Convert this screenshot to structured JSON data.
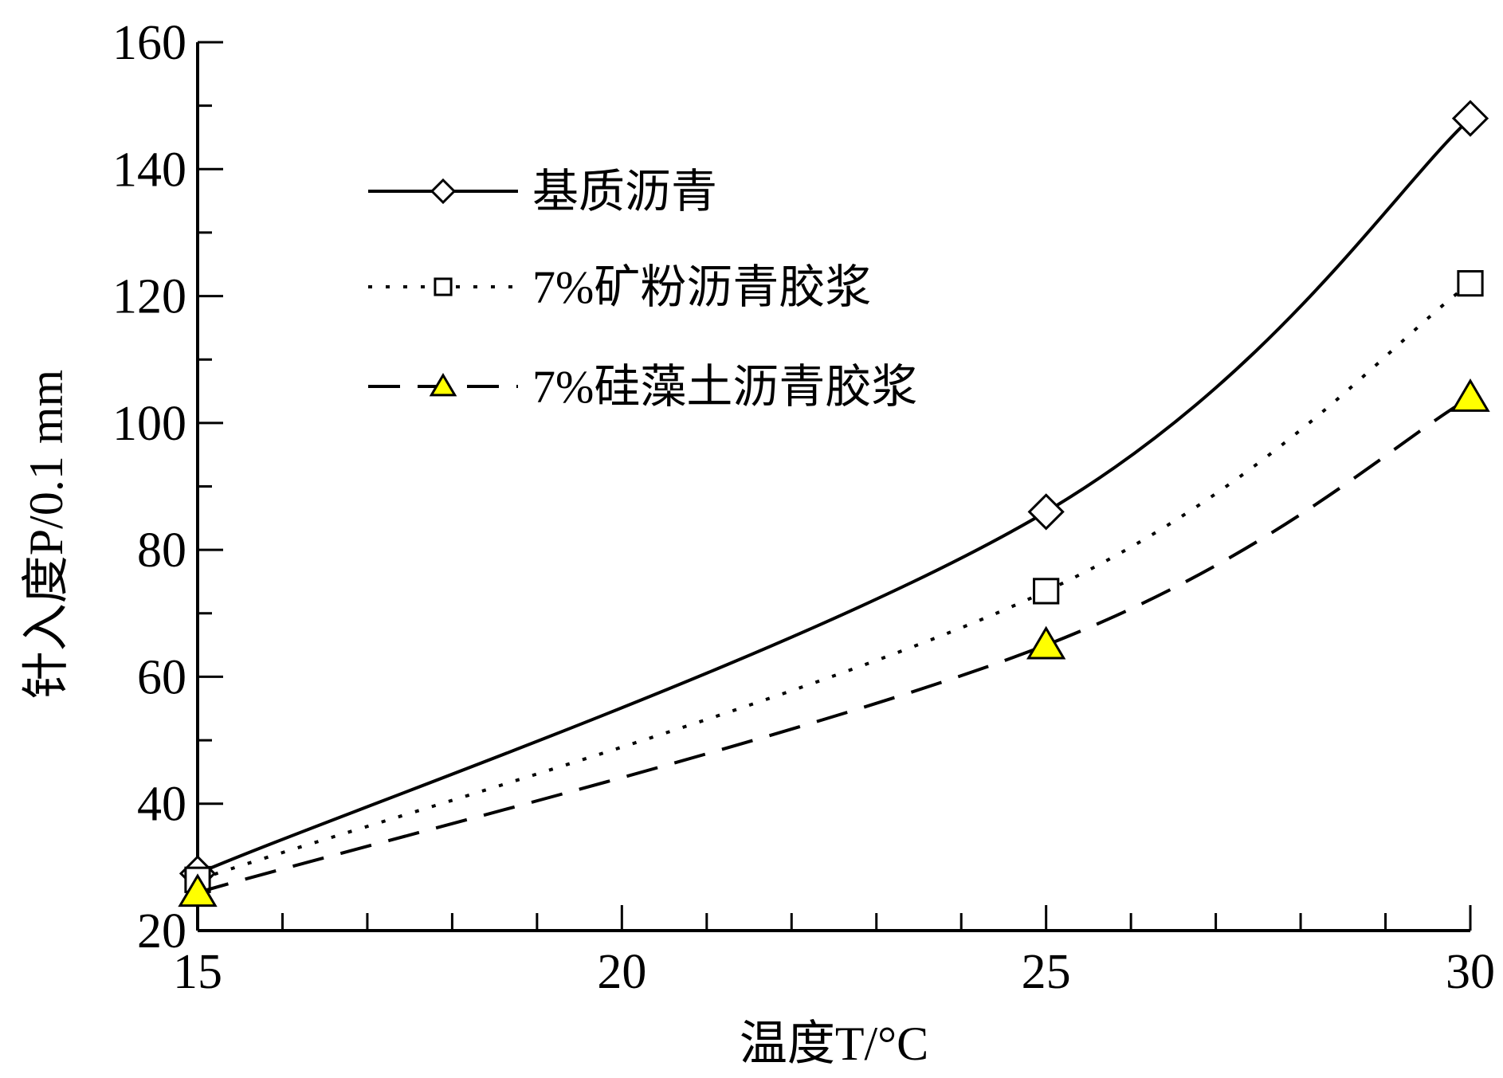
{
  "chart_data": {
    "type": "line",
    "xlabel": "温度T/°C",
    "ylabel": "针入度P/0.1 mm",
    "xlim": [
      15,
      30
    ],
    "ylim": [
      20,
      160
    ],
    "xticks": [
      15,
      20,
      25,
      30
    ],
    "yticks": [
      20,
      40,
      60,
      80,
      100,
      120,
      140,
      160
    ],
    "x": [
      15,
      25,
      30
    ],
    "series": [
      {
        "name": "基质沥青",
        "values": [
          29,
          86,
          148
        ],
        "line_style": "solid",
        "marker": "diamond",
        "marker_fill": "#ffffff"
      },
      {
        "name": "7%矿粉沥青胶浆",
        "values": [
          28,
          73.5,
          122
        ],
        "line_style": "dotted",
        "marker": "square",
        "marker_fill": "#ffffff"
      },
      {
        "name": "7%硅藻土沥青胶浆",
        "values": [
          26,
          65,
          104
        ],
        "line_style": "dashed",
        "marker": "triangle",
        "marker_fill": "#ffff00"
      }
    ],
    "legend_position": "top-left",
    "grid": false
  }
}
